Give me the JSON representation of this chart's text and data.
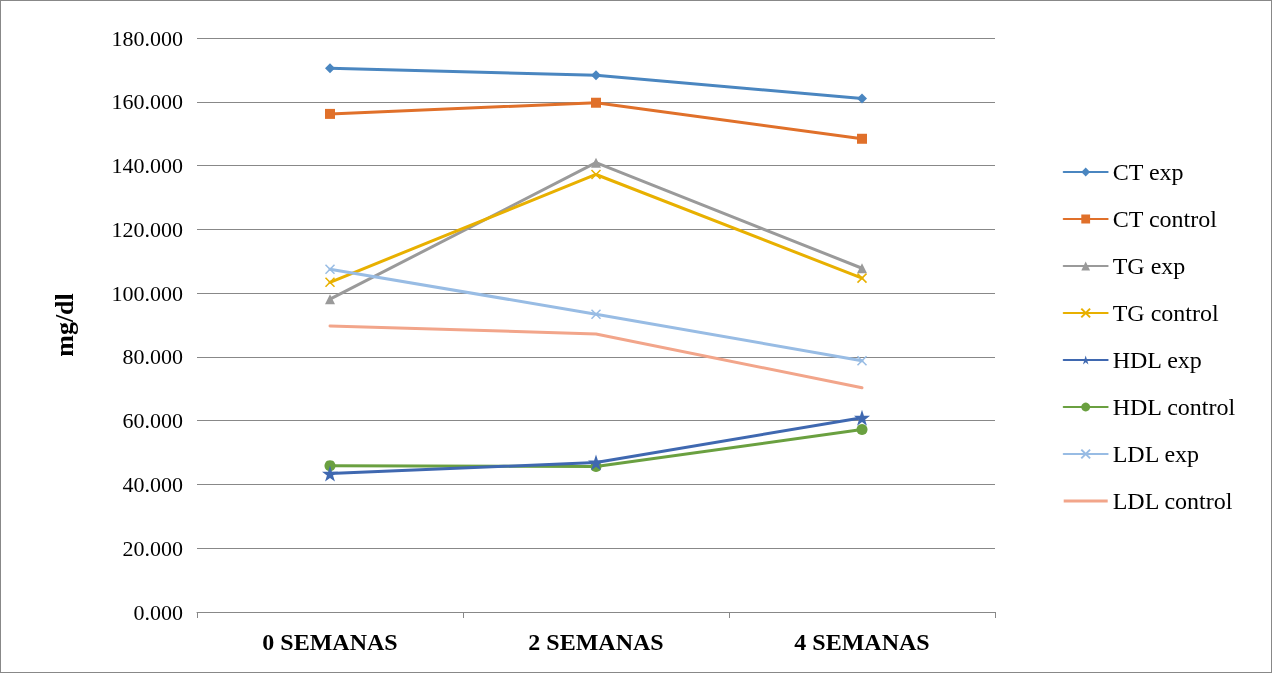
{
  "chart_data": {
    "type": "line",
    "ylabel": "mg/dl",
    "categories": [
      "0 SEMANAS",
      "2 SEMANAS",
      "4 SEMANAS"
    ],
    "series": [
      {
        "name": "CT exp",
        "color": "#4a86c0",
        "marker": "diamond",
        "values": [
          170.5,
          168.3,
          161.0
        ]
      },
      {
        "name": "CT control",
        "color": "#e0702a",
        "marker": "square",
        "values": [
          156.2,
          159.7,
          148.4
        ]
      },
      {
        "name": "TG exp",
        "color": "#9a9a9a",
        "marker": "triangle",
        "values": [
          98.1,
          140.9,
          107.8
        ]
      },
      {
        "name": "TG control",
        "color": "#e8b000",
        "marker": "cross",
        "values": [
          103.4,
          137.2,
          104.7
        ]
      },
      {
        "name": "HDL exp",
        "color": "#3f68b0",
        "marker": "star",
        "values": [
          43.4,
          46.9,
          60.9
        ]
      },
      {
        "name": "HDL control",
        "color": "#6aa040",
        "marker": "circle",
        "values": [
          45.9,
          45.6,
          57.2
        ]
      },
      {
        "name": "LDL exp",
        "color": "#98bce4",
        "marker": "cross",
        "values": [
          107.5,
          93.4,
          78.8
        ]
      },
      {
        "name": "LDL control",
        "color": "#f2a58a",
        "marker": "none",
        "values": [
          89.7,
          87.2,
          70.3
        ]
      }
    ],
    "ylim": [
      0,
      180
    ],
    "yticks": [
      {
        "value": 0,
        "label": "0.000"
      },
      {
        "value": 20,
        "label": "20.000"
      },
      {
        "value": 40,
        "label": "40.000"
      },
      {
        "value": 60,
        "label": "60.000"
      },
      {
        "value": 80,
        "label": "80.000"
      },
      {
        "value": 100,
        "label": "100.000"
      },
      {
        "value": 120,
        "label": "120.000"
      },
      {
        "value": 140,
        "label": "140.000"
      },
      {
        "value": 160,
        "label": "160.000"
      },
      {
        "value": 180,
        "label": "180.000"
      }
    ],
    "grid": "y",
    "legend": "right"
  }
}
